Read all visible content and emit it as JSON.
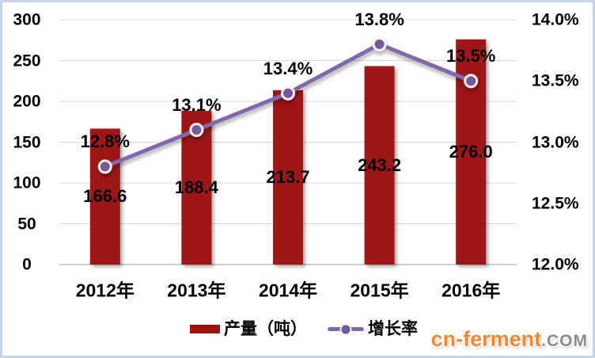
{
  "colors": {
    "bar": "#9e1212",
    "line": "#8168ac",
    "marker": "#74589f",
    "marker_ring": "#f5f1e9",
    "grid": "#dadada",
    "axis_line": "#bfbfbf",
    "frame": "#c3d4e9",
    "text": "#000000",
    "watermark_brand": "#f6862f",
    "watermark_suffix": "#8b8b8b"
  },
  "legend": {
    "items": [
      {
        "label": "产量（吨）",
        "type": "bar-swatch"
      },
      {
        "label": "增长率",
        "type": "line-marker"
      }
    ]
  },
  "watermark": {
    "brand": "cn-ferment",
    "suffix": ".COM"
  },
  "chart_data": {
    "type": "combo-bar-line",
    "title": "",
    "categories": [
      "2012年",
      "2013年",
      "2014年",
      "2015年",
      "2016年"
    ],
    "series": [
      {
        "name": "产量（吨）",
        "type": "bar",
        "axis": "left",
        "values": [
          166.6,
          188.4,
          213.7,
          243.2,
          276.0
        ],
        "labels": [
          "166.6",
          "188.4",
          "213.7",
          "243.2",
          "276.0"
        ]
      },
      {
        "name": "增长率",
        "type": "line",
        "axis": "right",
        "values": [
          12.8,
          13.1,
          13.4,
          13.8,
          13.5
        ],
        "labels": [
          "12.8%",
          "13.1%",
          "13.4%",
          "13.8%",
          "13.5%"
        ]
      }
    ],
    "left_axis": {
      "min": 0,
      "max": 300,
      "step": 50,
      "ticks": [
        "300",
        "250",
        "200",
        "150",
        "100",
        "50",
        "0"
      ]
    },
    "right_axis": {
      "min": 12.0,
      "max": 14.0,
      "step": 0.5,
      "ticks": [
        "14.0%",
        "13.5%",
        "13.0%",
        "12.5%",
        "12.0%"
      ]
    },
    "grid": true,
    "legend_position": "bottom"
  }
}
